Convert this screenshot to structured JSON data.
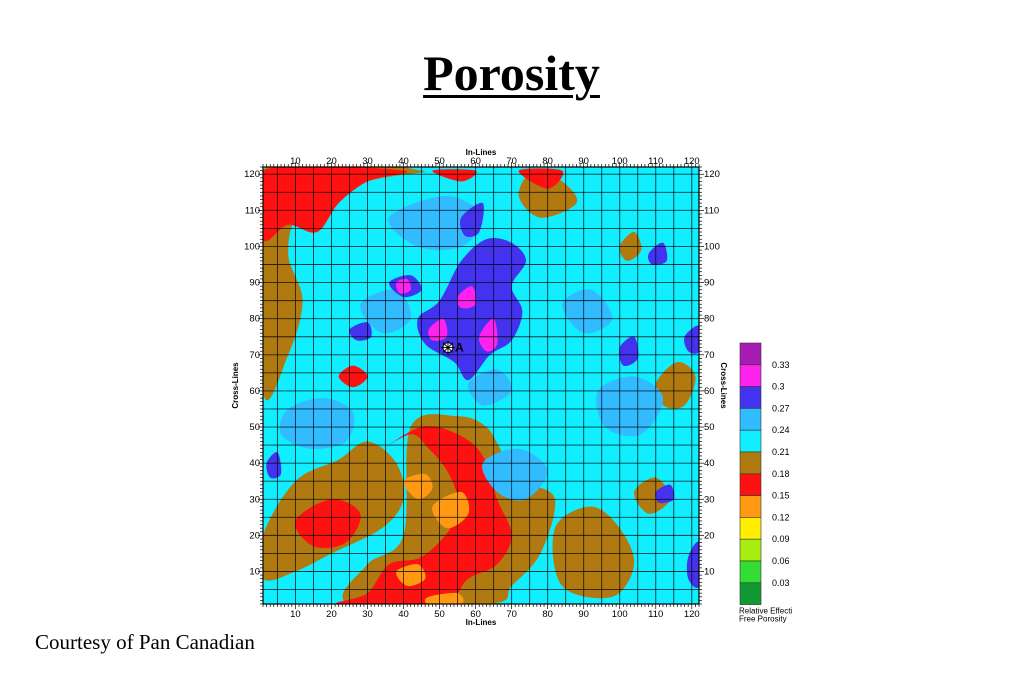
{
  "title": "Porosity",
  "credit": "Courtesy of Pan Canadian",
  "chart_data": {
    "type": "heatmap",
    "xlabel": "In-Lines",
    "ylabel": "Cross-Lines",
    "xlim": [
      1,
      122
    ],
    "ylim": [
      1,
      122
    ],
    "x_ticks": [
      10,
      20,
      30,
      40,
      50,
      60,
      70,
      80,
      90,
      100,
      110,
      120
    ],
    "y_ticks": [
      10,
      20,
      30,
      40,
      50,
      60,
      70,
      80,
      90,
      100,
      110,
      120
    ],
    "grid": true,
    "legend_placement": "right",
    "legend_title": [
      "Relative Effecti",
      "Free Porosity"
    ],
    "color_scale": [
      {
        "label": "",
        "color": "#a61cb1"
      },
      {
        "label": "0.33",
        "color": "#ff22ee"
      },
      {
        "label": "0.3",
        "color": "#4433ee"
      },
      {
        "label": "0.27",
        "color": "#33bbff"
      },
      {
        "label": "0.24",
        "color": "#11eeff"
      },
      {
        "label": "0.21",
        "color": "#b07a10"
      },
      {
        "label": "0.18",
        "color": "#ff1111"
      },
      {
        "label": "0.15",
        "color": "#ff9911"
      },
      {
        "label": "0.12",
        "color": "#ffee00"
      },
      {
        "label": "0.09",
        "color": "#aaee11"
      },
      {
        "label": "0.06",
        "color": "#33dd33"
      },
      {
        "label": "0.03",
        "color": "#119933"
      }
    ],
    "colors": {
      "magenta": "#ff22ee",
      "blue": "#4433ee",
      "sky": "#33bbff",
      "cyan": "#11eeff",
      "brown": "#b07a10",
      "red": "#ff1111",
      "orange": "#ff9911"
    },
    "well": {
      "label": "A",
      "x": 54,
      "y": 72
    },
    "regions": [
      {
        "level": "brown",
        "points": [
          [
            1,
            20
          ],
          [
            10,
            35
          ],
          [
            22,
            41
          ],
          [
            30,
            46
          ],
          [
            38,
            40
          ],
          [
            40,
            30
          ],
          [
            34,
            22
          ],
          [
            20,
            15
          ],
          [
            10,
            10
          ],
          [
            1,
            8
          ]
        ]
      },
      {
        "level": "brown",
        "points": [
          [
            1,
            60
          ],
          [
            8,
            70
          ],
          [
            12,
            85
          ],
          [
            8,
            98
          ],
          [
            12,
            110
          ],
          [
            30,
            118
          ],
          [
            45,
            121
          ],
          [
            1,
            121
          ]
        ]
      },
      {
        "level": "brown",
        "points": [
          [
            42,
            50
          ],
          [
            55,
            53
          ],
          [
            63,
            50
          ],
          [
            68,
            42
          ],
          [
            74,
            35
          ],
          [
            82,
            30
          ],
          [
            78,
            15
          ],
          [
            70,
            6
          ],
          [
            64,
            1
          ],
          [
            25,
            1
          ],
          [
            30,
            12
          ],
          [
            40,
            20
          ]
        ]
      },
      {
        "level": "brown",
        "points": [
          [
            82,
            22
          ],
          [
            92,
            28
          ],
          [
            100,
            22
          ],
          [
            104,
            12
          ],
          [
            98,
            3
          ],
          [
            84,
            6
          ]
        ]
      },
      {
        "level": "brown",
        "points": [
          [
            104,
            32
          ],
          [
            110,
            36
          ],
          [
            114,
            30
          ],
          [
            108,
            26
          ]
        ]
      },
      {
        "level": "brown",
        "points": [
          [
            110,
            62
          ],
          [
            116,
            68
          ],
          [
            121,
            64
          ],
          [
            118,
            56
          ],
          [
            112,
            56
          ]
        ]
      },
      {
        "level": "brown",
        "points": [
          [
            78,
            108
          ],
          [
            88,
            112
          ],
          [
            84,
            118
          ],
          [
            76,
            121
          ],
          [
            72,
            114
          ]
        ]
      },
      {
        "level": "brown",
        "points": [
          [
            100,
            100
          ],
          [
            104,
            104
          ],
          [
            106,
            99
          ],
          [
            102,
            96
          ]
        ]
      },
      {
        "level": "red",
        "points": [
          [
            1,
            102
          ],
          [
            8,
            106
          ],
          [
            16,
            104
          ],
          [
            22,
            112
          ],
          [
            30,
            118
          ],
          [
            40,
            121
          ],
          [
            1,
            121
          ]
        ]
      },
      {
        "level": "red",
        "points": [
          [
            33,
            43
          ],
          [
            42,
            48
          ],
          [
            47,
            44
          ],
          [
            52,
            38
          ],
          [
            55,
            30
          ],
          [
            53,
            22
          ],
          [
            45,
            14
          ],
          [
            36,
            12
          ],
          [
            30,
            4
          ],
          [
            22,
            1
          ],
          [
            50,
            1
          ],
          [
            58,
            8
          ],
          [
            66,
            12
          ],
          [
            70,
            20
          ],
          [
            66,
            30
          ],
          [
            62,
            42
          ],
          [
            55,
            48
          ],
          [
            45,
            50
          ]
        ]
      },
      {
        "level": "red",
        "points": [
          [
            10,
            24
          ],
          [
            20,
            30
          ],
          [
            28,
            26
          ],
          [
            24,
            18
          ],
          [
            15,
            17
          ]
        ]
      },
      {
        "level": "red",
        "points": [
          [
            48,
            121
          ],
          [
            56,
            118
          ],
          [
            60,
            121
          ]
        ]
      },
      {
        "level": "red",
        "points": [
          [
            72,
            121
          ],
          [
            80,
            116
          ],
          [
            84,
            121
          ]
        ]
      },
      {
        "level": "red",
        "points": [
          [
            22,
            64
          ],
          [
            26,
            67
          ],
          [
            30,
            64
          ],
          [
            26,
            61
          ]
        ]
      },
      {
        "level": "orange",
        "points": [
          [
            40,
            35
          ],
          [
            46,
            37
          ],
          [
            48,
            33
          ],
          [
            44,
            30
          ]
        ]
      },
      {
        "level": "orange",
        "points": [
          [
            48,
            28
          ],
          [
            56,
            32
          ],
          [
            58,
            26
          ],
          [
            52,
            22
          ]
        ]
      },
      {
        "level": "orange",
        "points": [
          [
            38,
            10
          ],
          [
            44,
            12
          ],
          [
            46,
            8
          ],
          [
            41,
            6
          ]
        ]
      },
      {
        "level": "orange",
        "points": [
          [
            47,
            3
          ],
          [
            55,
            4
          ],
          [
            56,
            1
          ],
          [
            47,
            1
          ]
        ]
      },
      {
        "level": "sky",
        "points": [
          [
            8,
            55
          ],
          [
            18,
            58
          ],
          [
            26,
            54
          ],
          [
            24,
            46
          ],
          [
            14,
            44
          ],
          [
            6,
            48
          ]
        ]
      },
      {
        "level": "sky",
        "points": [
          [
            62,
            40
          ],
          [
            72,
            44
          ],
          [
            80,
            38
          ],
          [
            74,
            30
          ],
          [
            66,
            32
          ]
        ]
      },
      {
        "level": "sky",
        "points": [
          [
            94,
            60
          ],
          [
            104,
            64
          ],
          [
            112,
            58
          ],
          [
            106,
            48
          ],
          [
            96,
            50
          ]
        ]
      },
      {
        "level": "sky",
        "points": [
          [
            36,
            108
          ],
          [
            52,
            114
          ],
          [
            62,
            108
          ],
          [
            56,
            100
          ],
          [
            44,
            100
          ]
        ]
      },
      {
        "level": "sky",
        "points": [
          [
            28,
            84
          ],
          [
            38,
            88
          ],
          [
            42,
            80
          ],
          [
            34,
            76
          ]
        ]
      },
      {
        "level": "sky",
        "points": [
          [
            58,
            62
          ],
          [
            66,
            66
          ],
          [
            70,
            60
          ],
          [
            62,
            56
          ]
        ]
      },
      {
        "level": "sky",
        "points": [
          [
            84,
            84
          ],
          [
            92,
            88
          ],
          [
            98,
            80
          ],
          [
            90,
            76
          ]
        ]
      },
      {
        "level": "blue",
        "points": [
          [
            44,
            80
          ],
          [
            50,
            85
          ],
          [
            56,
            96
          ],
          [
            63,
            102
          ],
          [
            70,
            101
          ],
          [
            74,
            96
          ],
          [
            70,
            89
          ],
          [
            73,
            82
          ],
          [
            70,
            74
          ],
          [
            64,
            70
          ],
          [
            58,
            63
          ],
          [
            54,
            68
          ],
          [
            46,
            73
          ]
        ]
      },
      {
        "level": "blue",
        "points": [
          [
            36,
            90
          ],
          [
            42,
            92
          ],
          [
            45,
            88
          ],
          [
            40,
            86
          ]
        ]
      },
      {
        "level": "blue",
        "points": [
          [
            56,
            108
          ],
          [
            62,
            112
          ],
          [
            61,
            104
          ],
          [
            57,
            103
          ]
        ]
      },
      {
        "level": "blue",
        "points": [
          [
            25,
            77
          ],
          [
            30,
            79
          ],
          [
            31,
            75
          ],
          [
            27,
            74
          ]
        ]
      },
      {
        "level": "blue",
        "points": [
          [
            100,
            72
          ],
          [
            104,
            75
          ],
          [
            105,
            69
          ],
          [
            101,
            67
          ]
        ]
      },
      {
        "level": "blue",
        "points": [
          [
            118,
            75
          ],
          [
            122,
            78
          ],
          [
            122,
            71
          ],
          [
            119,
            71
          ]
        ]
      },
      {
        "level": "blue",
        "points": [
          [
            119,
            14
          ],
          [
            122,
            18
          ],
          [
            122,
            6
          ],
          [
            119,
            8
          ]
        ]
      },
      {
        "level": "blue",
        "points": [
          [
            110,
            32
          ],
          [
            114,
            34
          ],
          [
            115,
            30
          ],
          [
            111,
            29
          ]
        ]
      },
      {
        "level": "blue",
        "points": [
          [
            2,
            40
          ],
          [
            5,
            43
          ],
          [
            6,
            37
          ],
          [
            3,
            36
          ]
        ]
      },
      {
        "level": "blue",
        "points": [
          [
            108,
            98
          ],
          [
            112,
            101
          ],
          [
            113,
            96
          ],
          [
            109,
            95
          ]
        ]
      },
      {
        "level": "magenta",
        "points": [
          [
            47,
            77
          ],
          [
            51,
            80
          ],
          [
            52,
            75
          ],
          [
            48,
            74
          ]
        ]
      },
      {
        "level": "magenta",
        "points": [
          [
            61,
            75
          ],
          [
            65,
            80
          ],
          [
            66,
            73
          ],
          [
            63,
            71
          ]
        ]
      },
      {
        "level": "magenta",
        "points": [
          [
            55,
            86
          ],
          [
            59,
            89
          ],
          [
            60,
            84
          ],
          [
            56,
            83
          ]
        ]
      },
      {
        "level": "magenta",
        "points": [
          [
            38,
            90
          ],
          [
            41,
            91
          ],
          [
            42,
            88
          ],
          [
            39,
            87
          ]
        ]
      }
    ]
  }
}
